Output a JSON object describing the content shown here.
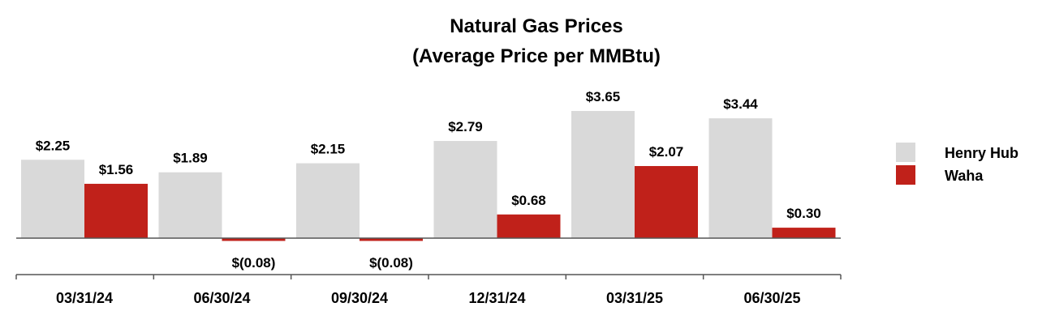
{
  "chart_data": {
    "type": "bar",
    "title": "Natural Gas Prices",
    "subtitle": "(Average Price per MMBtu)",
    "xlabel": "",
    "ylabel": "",
    "ylim": [
      -0.4,
      4.0
    ],
    "grid": false,
    "legend_position": "right",
    "categories": [
      "03/31/24",
      "06/30/24",
      "09/30/24",
      "12/31/24",
      "03/31/25",
      "06/30/25"
    ],
    "series": [
      {
        "name": "Henry Hub",
        "color": "#d9d9d9",
        "values": [
          2.25,
          1.89,
          2.15,
          2.79,
          3.65,
          3.44
        ],
        "labels": [
          "$2.25",
          "$1.89",
          "$2.15",
          "$2.79",
          "$3.65",
          "$3.44"
        ]
      },
      {
        "name": "Waha",
        "color": "#c0211a",
        "values": [
          1.56,
          -0.08,
          -0.08,
          0.68,
          2.07,
          0.3
        ],
        "labels": [
          "$1.56",
          "$(0.08)",
          "$(0.08)",
          "$0.68",
          "$2.07",
          "$0.30"
        ]
      }
    ]
  }
}
